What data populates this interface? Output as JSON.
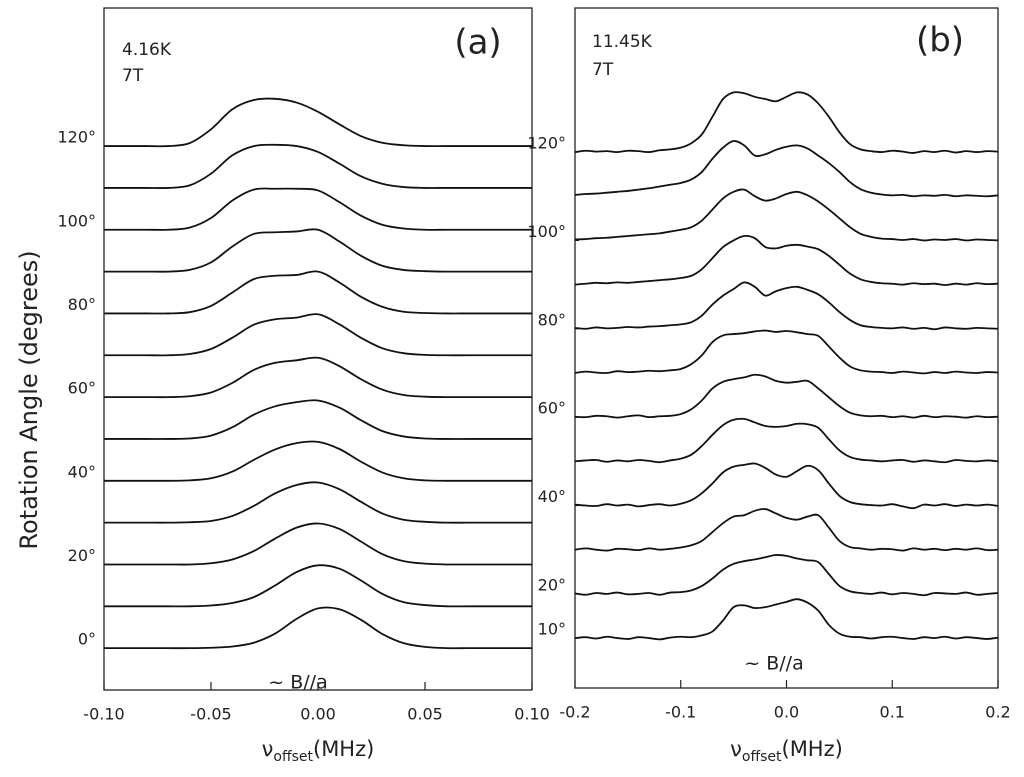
{
  "chart_data": [
    {
      "type": "line",
      "ylabel": "Rotation Angle (degrees)",
      "annotations": [
        "4.16K",
        "7T"
      ],
      "panel_label": "(a)",
      "field_label": "~ B//a",
      "xlabel": {
        "symbol": "ν",
        "subscript": "offset",
        "text": "(MHz)"
      },
      "color": "#111",
      "xlim": [
        -0.1,
        0.1
      ],
      "xticks": [
        {
          "value": -0.1,
          "label": "-0.10"
        },
        -0.05,
        {
          "value": 0,
          "label": "0.00"
        },
        0.05,
        {
          "value": 0.1,
          "label": "0.10"
        }
      ],
      "ylim": [
        -10,
        153
      ],
      "yticks": [
        {
          "value": 0,
          "label": "0°"
        },
        {
          "value": 20,
          "label": "20°"
        },
        {
          "value": 40,
          "label": "40°"
        },
        {
          "value": 60,
          "label": "60°"
        },
        {
          "value": 80,
          "label": "80°"
        },
        {
          "value": 100,
          "label": "100°"
        },
        {
          "value": 120,
          "label": "120°"
        }
      ],
      "x": [
        -0.1,
        -0.09,
        -0.08,
        -0.07,
        -0.06,
        -0.05,
        -0.04,
        -0.03,
        -0.02,
        -0.01,
        0,
        0.01,
        0.02,
        0.03,
        0.04,
        0.05,
        0.06,
        0.07,
        0.08,
        0.09,
        0.1
      ],
      "series": [
        {
          "offset": 0,
          "values": [
            0,
            0,
            0,
            0,
            0,
            0.1,
            0.4,
            1.3,
            3.5,
            7,
            9.5,
            9.3,
            6.8,
            3.4,
            1.2,
            0.3,
            0,
            0,
            0,
            0,
            0
          ]
        },
        {
          "offset": 10,
          "values": [
            0,
            0,
            0,
            0,
            0,
            0.2,
            0.8,
            2.2,
            5,
            8.2,
            9.8,
            9,
            6.2,
            3,
            1,
            0.3,
            0,
            0,
            0,
            0,
            0
          ]
        },
        {
          "offset": 20,
          "values": [
            0,
            0,
            0,
            0,
            0,
            0.3,
            1.2,
            3.2,
            6.2,
            8.8,
            9.8,
            8.5,
            5.5,
            2.5,
            0.8,
            0.2,
            0,
            0,
            0,
            0,
            0
          ]
        },
        {
          "offset": 30,
          "values": [
            0,
            0,
            0,
            0,
            0.1,
            0.4,
            1.6,
            4,
            7,
            9,
            9.6,
            8,
            5,
            2.2,
            0.7,
            0.2,
            0,
            0,
            0,
            0,
            0
          ]
        },
        {
          "offset": 40,
          "values": [
            0,
            0,
            0,
            0,
            0.1,
            0.6,
            2.2,
            5,
            7.5,
            9,
            9.3,
            7.6,
            4.6,
            2,
            0.6,
            0.1,
            0,
            0,
            0,
            0,
            0
          ]
        },
        {
          "offset": 50,
          "values": [
            0,
            0,
            0,
            0,
            0.1,
            0.8,
            2.8,
            5.8,
            7.8,
            8.8,
            9.2,
            7.5,
            4.5,
            1.9,
            0.6,
            0.1,
            0,
            0,
            0,
            0,
            0
          ]
        },
        {
          "offset": 60,
          "values": [
            0,
            0,
            0,
            0,
            0.2,
            1.1,
            3.4,
            6.5,
            8.2,
            8.8,
            9.4,
            7.4,
            4.3,
            1.8,
            0.5,
            0.1,
            0,
            0,
            0,
            0,
            0
          ]
        },
        {
          "offset": 70,
          "values": [
            0,
            0,
            0,
            0,
            0.3,
            1.5,
            4.2,
            7.3,
            8.6,
            9,
            9.8,
            7.4,
            4.2,
            1.7,
            0.5,
            0.1,
            0,
            0,
            0,
            0,
            0
          ]
        },
        {
          "offset": 80,
          "values": [
            0,
            0,
            0,
            0,
            0.3,
            1.8,
            5,
            8.2,
            9,
            9.2,
            10,
            7.4,
            4,
            1.6,
            0.4,
            0.1,
            0,
            0,
            0,
            0,
            0
          ]
        },
        {
          "offset": 90,
          "values": [
            0,
            0,
            0,
            0,
            0.4,
            2.2,
            6,
            9,
            9.4,
            9.6,
            10,
            7.2,
            3.8,
            1.4,
            0.4,
            0.1,
            0,
            0,
            0,
            0,
            0
          ]
        },
        {
          "offset": 100,
          "values": [
            0,
            0,
            0,
            0,
            0.5,
            2.8,
            7,
            9.6,
            9.8,
            9.8,
            9.4,
            6.6,
            3.4,
            1.2,
            0.3,
            0,
            0,
            0,
            0,
            0,
            0
          ]
        },
        {
          "offset": 110,
          "values": [
            0,
            0,
            0,
            0,
            0.6,
            3.4,
            7.8,
            10,
            10.3,
            10,
            8.6,
            5.8,
            2.8,
            1,
            0.2,
            0,
            0,
            0,
            0,
            0,
            0
          ]
        },
        {
          "offset": 120,
          "values": [
            0,
            0,
            0,
            0,
            0.7,
            4,
            8.8,
            11,
            11.3,
            10.4,
            8.2,
            5.2,
            2.4,
            0.8,
            0.2,
            0,
            0,
            0,
            0,
            0,
            0
          ]
        }
      ]
    },
    {
      "type": "line",
      "annotations": [
        "11.45K",
        "7T"
      ],
      "panel_label": "(b)",
      "field_label": "~ B//a",
      "xlabel": {
        "symbol": "ν",
        "subscript": "offset",
        "text": "(MHz)"
      },
      "color": "#111",
      "xlim": [
        -0.2,
        0.2
      ],
      "xticks": [
        -0.2,
        -0.1,
        {
          "value": 0,
          "label": "0.0"
        },
        0.1,
        0.2
      ],
      "ylim": [
        -1.3,
        152.6
      ],
      "yticks": [
        {
          "value": 10,
          "label": "10°"
        },
        {
          "value": 20,
          "label": "20°"
        },
        {
          "value": 40,
          "label": "40°"
        },
        {
          "value": 60,
          "label": "60°"
        },
        {
          "value": 80,
          "label": "80°"
        },
        {
          "value": 100,
          "label": "100°"
        },
        {
          "value": 120,
          "label": "120°"
        }
      ],
      "x": [
        -0.2,
        -0.19,
        -0.18,
        -0.17,
        -0.16,
        -0.15,
        -0.14,
        -0.13,
        -0.12,
        -0.11,
        -0.1,
        -0.09,
        -0.08,
        -0.07,
        -0.06,
        -0.05,
        -0.04,
        -0.03,
        -0.02,
        -0.01,
        0,
        0.01,
        0.02,
        0.03,
        0.04,
        0.05,
        0.06,
        0.07,
        0.08,
        0.09,
        0.1,
        0.11,
        0.12,
        0.13,
        0.14,
        0.15,
        0.16,
        0.17,
        0.18,
        0.19,
        0.2
      ],
      "series": [
        {
          "offset": 10,
          "values": [
            0,
            0.2,
            -0.1,
            0.3,
            0,
            -0.2,
            0.2,
            0,
            -0.3,
            0.1,
            0.3,
            0.2,
            0.6,
            1.5,
            4,
            7,
            7.4,
            6.8,
            7,
            7.6,
            8.2,
            8.8,
            8,
            6.2,
            3,
            1,
            0.3,
            0.2,
            -0.1,
            0.2,
            0.3,
            0,
            -0.2,
            0.2,
            0,
            0.3,
            -0.1,
            0.2,
            0,
            -0.2,
            0.1
          ]
        },
        {
          "offset": 20,
          "values": [
            0.1,
            -0.2,
            0.2,
            0,
            0.3,
            -0.1,
            0,
            0.2,
            -0.2,
            0.3,
            0.4,
            0.8,
            1.8,
            3.5,
            5.5,
            6.8,
            7.4,
            7.8,
            8.3,
            8.8,
            8.6,
            8,
            7.6,
            7.2,
            4.5,
            1.8,
            0.6,
            0.2,
            0,
            0.3,
            -0.1,
            0.2,
            0,
            -0.3,
            0.2,
            0.1,
            0,
            0.3,
            -0.2,
            0,
            0.2
          ]
        },
        {
          "offset": 30,
          "values": [
            0,
            0.3,
            0,
            -0.2,
            0.2,
            0.1,
            -0.1,
            0.3,
            0,
            0.2,
            0.5,
            1,
            2,
            4,
            6,
            7.5,
            7.8,
            8.8,
            9.2,
            8.2,
            7.2,
            6.8,
            7.5,
            7.8,
            5,
            2,
            0.6,
            0.3,
            0,
            0.2,
            0.1,
            -0.2,
            0.3,
            0,
            0.2,
            -0.1,
            0.2,
            0,
            0.3,
            -0.1,
            0
          ]
        },
        {
          "offset": 40,
          "values": [
            0.2,
            0,
            -0.1,
            0.3,
            0,
            0.2,
            -0.2,
            0.1,
            0.3,
            0,
            0.4,
            1.2,
            2.8,
            5,
            7.5,
            8.8,
            9.2,
            9.5,
            8.5,
            7,
            6.5,
            7.8,
            9,
            8,
            5,
            2.2,
            0.8,
            0.3,
            0.1,
            0,
            0.3,
            -0.2,
            -0.6,
            0.2,
            0,
            0.3,
            -0.1,
            0.2,
            0,
            0.2,
            -0.1
          ]
        },
        {
          "offset": 50,
          "values": [
            0,
            0.2,
            0.3,
            -0.1,
            0.2,
            0,
            0.3,
            0.1,
            -0.2,
            0.2,
            0.6,
            1.5,
            3.5,
            6,
            8.2,
            9.4,
            9.6,
            8.8,
            8,
            7.8,
            8,
            8.5,
            8.4,
            7.6,
            5,
            2.5,
            1,
            0.4,
            0.2,
            0,
            0.2,
            0.3,
            -0.1,
            0.2,
            0,
            -0.2,
            0.3,
            0.1,
            0,
            0.2,
            0
          ]
        },
        {
          "offset": 60,
          "values": [
            0.1,
            0,
            0.3,
            0.2,
            -0.1,
            0.2,
            0.4,
            0,
            0.2,
            0.3,
            0.7,
            1.8,
            3.8,
            6.5,
            8,
            8.6,
            9,
            9.6,
            9.2,
            8.2,
            7.8,
            8,
            8.2,
            6.5,
            4.5,
            2.5,
            1,
            0.4,
            0.2,
            0.3,
            0,
            0.2,
            -0.1,
            0.3,
            0,
            0.2,
            0.1,
            -0.1,
            0.2,
            0,
            0.1
          ]
        },
        {
          "offset": 70,
          "values": [
            0,
            0.3,
            0.1,
            0,
            0.4,
            0.2,
            0.3,
            0.5,
            0.4,
            0.6,
            0.9,
            2,
            4,
            7,
            8.5,
            8.8,
            9,
            9.4,
            9.6,
            9.3,
            9.5,
            9.2,
            8.8,
            8.4,
            6,
            3.5,
            1.5,
            0.6,
            0.3,
            0.2,
            0,
            0.3,
            0.1,
            -0.1,
            0.2,
            0,
            0.3,
            0.1,
            0,
            0.2,
            0.1
          ]
        },
        {
          "offset": 80,
          "values": [
            0.2,
            0,
            0.3,
            0.1,
            0.2,
            0.4,
            0.3,
            0.5,
            0.6,
            0.8,
            1,
            1.5,
            3,
            5.5,
            7.5,
            9,
            10.5,
            9.5,
            7.5,
            8.5,
            9.2,
            9.5,
            8.8,
            7.8,
            6,
            3.8,
            2,
            0.8,
            0.4,
            0.2,
            0.1,
            0.3,
            0,
            0.2,
            -0.1,
            0.3,
            0.1,
            0,
            0.2,
            0.1,
            0
          ]
        },
        {
          "offset": 90,
          "values": [
            0,
            0.2,
            0.4,
            0.3,
            0.5,
            0.4,
            0.6,
            0.8,
            1,
            1.2,
            1.5,
            2,
            3.5,
            6,
            8.5,
            10,
            11,
            10.5,
            8.5,
            8.2,
            8.8,
            9,
            8.6,
            8,
            6.5,
            4.5,
            2.5,
            1.2,
            0.6,
            0.3,
            0.2,
            0,
            0.3,
            0.1,
            0.2,
            -0.1,
            0.2,
            0,
            0.3,
            0.1,
            0.2
          ]
        },
        {
          "offset": 100,
          "values": [
            0.2,
            0.3,
            0.5,
            0.6,
            0.8,
            1,
            1.2,
            1.4,
            1.6,
            2,
            2.4,
            3,
            4.5,
            7,
            9.5,
            11,
            11.5,
            10,
            9,
            9.5,
            10.5,
            11,
            10.2,
            8.8,
            7,
            5,
            3,
            1.5,
            0.8,
            0.4,
            0.3,
            0.1,
            0.3,
            0,
            0.2,
            0.1,
            0.3,
            0,
            0.2,
            0.1,
            0
          ]
        },
        {
          "offset": 110,
          "values": [
            0.3,
            0.5,
            0.6,
            0.8,
            1,
            1.2,
            1.5,
            1.8,
            2.2,
            2.6,
            3,
            3.8,
            5.5,
            8.5,
            11,
            12.5,
            11.5,
            9.2,
            9.5,
            10.5,
            11.2,
            11.5,
            10.8,
            9.2,
            7.5,
            5.5,
            3.2,
            1.6,
            0.8,
            0.4,
            0.2,
            0.3,
            0,
            0.2,
            0.1,
            0.3,
            0,
            0.2,
            0.1,
            0,
            0.2
          ]
        },
        {
          "offset": 120,
          "values": [
            0,
            0.3,
            0.1,
            0.2,
            0,
            0.3,
            0.2,
            0,
            0.4,
            0.6,
            1,
            2,
            4,
            8,
            12,
            13.5,
            13.3,
            12.5,
            12,
            11.5,
            12.5,
            13.5,
            13,
            11,
            8,
            4.5,
            1.8,
            0.6,
            0.2,
            0,
            0.3,
            0.1,
            -0.2,
            0.2,
            0,
            0.3,
            -0.1,
            0.2,
            0,
            0.2,
            0.1
          ]
        }
      ]
    }
  ]
}
